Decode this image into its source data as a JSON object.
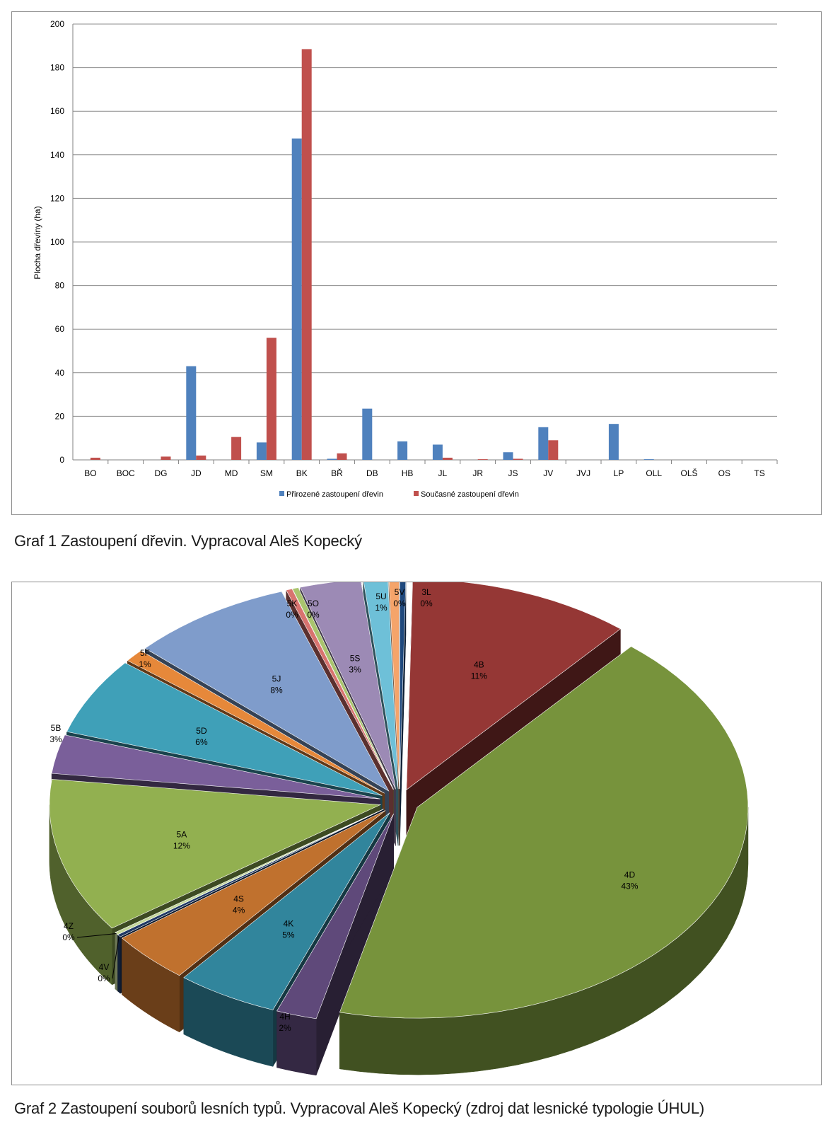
{
  "captions": {
    "graf1": "Graf 1 Zastoupení dřevin. Vypracoval Aleš Kopecký",
    "graf2": "Graf 2 Zastoupení souborů lesních typů. Vypracoval Aleš Kopecký (zdroj dat lesnické typologie ÚHUL)"
  },
  "chart_data": [
    {
      "type": "bar",
      "title": "",
      "xlabel": "",
      "ylabel": "Plocha dřeviny (ha)",
      "ylim": [
        0,
        200
      ],
      "yticks": [
        0,
        20,
        40,
        60,
        80,
        100,
        120,
        140,
        160,
        180,
        200
      ],
      "grid": true,
      "legend_position": "bottom",
      "categories": [
        "BO",
        "BOC",
        "DG",
        "JD",
        "MD",
        "SM",
        "BK",
        "BŘ",
        "DB",
        "HB",
        "JL",
        "JR",
        "JS",
        "JV",
        "JVJ",
        "LP",
        "OLL",
        "OLŠ",
        "OS",
        "TS"
      ],
      "series": [
        {
          "name": "Přirozené zastoupení dřevin",
          "color": "#4f81bd",
          "values": [
            0,
            0,
            0,
            43,
            0,
            8,
            147.5,
            0.5,
            23.5,
            8.5,
            7,
            0,
            3.5,
            15,
            0,
            16.5,
            0.3,
            0,
            0,
            0
          ]
        },
        {
          "name": "Současné zastoupení dřevin",
          "color": "#c0504d",
          "values": [
            1,
            0,
            1.5,
            2,
            10.5,
            56,
            188.5,
            3,
            0,
            0,
            1,
            0.3,
            0.5,
            9,
            0,
            0,
            0,
            0,
            0,
            0
          ]
        }
      ]
    },
    {
      "type": "pie",
      "title": "",
      "style": "3d-exploded",
      "slices": [
        {
          "label": "3L",
          "pct_label": "0%",
          "value": 0.3,
          "color": "#1f497d"
        },
        {
          "label": "4B",
          "pct_label": "11%",
          "value": 11,
          "color": "#953735"
        },
        {
          "label": "4D",
          "pct_label": "43%",
          "value": 43,
          "color": "#77933c"
        },
        {
          "label": "4H",
          "pct_label": "2%",
          "value": 2,
          "color": "#5f497a"
        },
        {
          "label": "4K",
          "pct_label": "5%",
          "value": 5,
          "color": "#31859c"
        },
        {
          "label": "4S",
          "pct_label": "4%",
          "value": 4,
          "color": "#c0712e"
        },
        {
          "label": "4V",
          "pct_label": "0%",
          "value": 0.2,
          "color": "#1f3864"
        },
        {
          "label": "4Z",
          "pct_label": "0%",
          "value": 0.2,
          "color": "#c4d79b"
        },
        {
          "label": "5A",
          "pct_label": "12%",
          "value": 12,
          "color": "#92b050"
        },
        {
          "label": "5B",
          "pct_label": "3%",
          "value": 3,
          "color": "#7a5f9a"
        },
        {
          "label": "5D",
          "pct_label": "6%",
          "value": 6,
          "color": "#3fa0b8"
        },
        {
          "label": "5F",
          "pct_label": "1%",
          "value": 1,
          "color": "#e6883a"
        },
        {
          "label": "5J",
          "pct_label": "8%",
          "value": 8,
          "color": "#7f9ccb"
        },
        {
          "label": "5K",
          "pct_label": "0%",
          "value": 0.3,
          "color": "#d8736f"
        },
        {
          "label": "5O",
          "pct_label": "0%",
          "value": 0.3,
          "color": "#a9c46e"
        },
        {
          "label": "5S",
          "pct_label": "3%",
          "value": 3,
          "color": "#9c8ab5"
        },
        {
          "label": "5U",
          "pct_label": "1%",
          "value": 1.2,
          "color": "#6ec0d8"
        },
        {
          "label": "5V",
          "pct_label": "0%",
          "value": 0.5,
          "color": "#f5a46a"
        }
      ]
    }
  ]
}
